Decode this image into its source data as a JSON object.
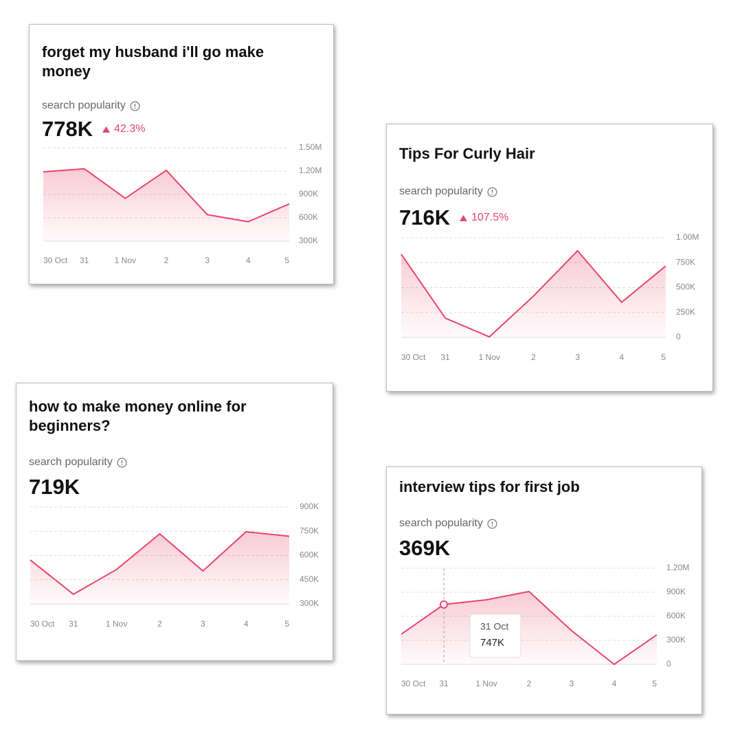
{
  "chart_data": [
    {
      "type": "line",
      "title": "forget my husband i'll go make money",
      "subtitle": "search popularity",
      "headline": "778K",
      "change": "42.3%",
      "categories": [
        "30 Oct",
        "31",
        "1 Nov",
        "2",
        "3",
        "4",
        "5"
      ],
      "values": [
        1190000,
        1230000,
        850000,
        1210000,
        640000,
        550000,
        778000
      ],
      "color": "#e8456b",
      "ylim": [
        300000,
        1500000
      ],
      "yticks": [
        {
          "value": 300000,
          "label": "300K"
        },
        {
          "value": 600000,
          "label": "600K"
        },
        {
          "value": 900000,
          "label": "900K"
        },
        {
          "value": 1200000,
          "label": "1.20M"
        },
        {
          "value": 1500000,
          "label": "1.50M"
        }
      ],
      "grid": true
    },
    {
      "type": "line",
      "title": "Tips For Curly Hair",
      "subtitle": "search popularity",
      "headline": "716K",
      "change": "107.5%",
      "categories": [
        "30 Oct",
        "31",
        "1 Nov",
        "2",
        "3",
        "4",
        "5"
      ],
      "values": [
        834000,
        193000,
        5000,
        414000,
        869000,
        352000,
        716000
      ],
      "color": "#e8456b",
      "ylim": [
        0,
        1000000
      ],
      "yticks": [
        0,
        {
          "value": 250000,
          "label": "250K"
        },
        {
          "value": 500000,
          "label": "500K"
        },
        {
          "value": 750000,
          "label": "750K"
        },
        {
          "value": 1000000,
          "label": "1.00M"
        }
      ],
      "grid": true
    },
    {
      "type": "line",
      "title": "how to make money online for beginners?",
      "subtitle": "search popularity",
      "headline": "719K",
      "categories": [
        "30 Oct",
        "31",
        "1 Nov",
        "2",
        "3",
        "4",
        "5"
      ],
      "values": [
        572000,
        360000,
        513000,
        734000,
        504000,
        747000,
        719000
      ],
      "color": "#e8456b",
      "ylim": [
        300000,
        900000
      ],
      "yticks": [
        {
          "value": 300000,
          "label": "300K"
        },
        {
          "value": 450000,
          "label": "450K"
        },
        {
          "value": 600000,
          "label": "600K"
        },
        {
          "value": 750000,
          "label": "750K"
        },
        {
          "value": 900000,
          "label": "900K"
        }
      ],
      "grid": true
    },
    {
      "type": "line",
      "title": "interview tips for first job",
      "subtitle": "search popularity",
      "headline": "369K",
      "categories": [
        "30 Oct",
        "31",
        "1 Nov",
        "2",
        "3",
        "4",
        "5"
      ],
      "values": [
        377000,
        747000,
        806000,
        909000,
        420000,
        0,
        369000
      ],
      "color": "#e8456b",
      "ylim": [
        0,
        1200000
      ],
      "yticks": [
        0,
        {
          "value": 300000,
          "label": "300K"
        },
        {
          "value": 600000,
          "label": "600K"
        },
        {
          "value": 900000,
          "label": "900K"
        },
        {
          "value": 1200000,
          "label": "1.20M"
        }
      ],
      "grid": true,
      "tooltip": {
        "x": "31 Oct",
        "label": "747K",
        "value": 747000
      }
    }
  ]
}
